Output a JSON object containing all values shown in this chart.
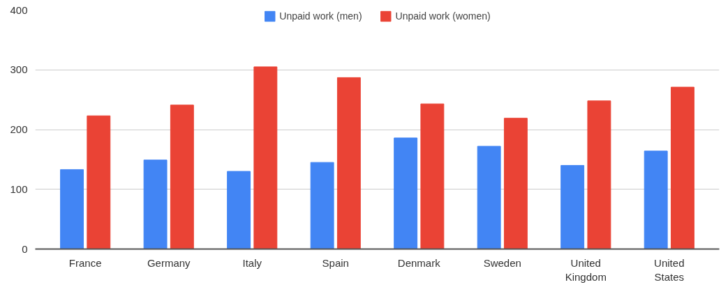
{
  "chart_data": {
    "type": "bar",
    "categories": [
      "France",
      "Germany",
      "Italy",
      "Spain",
      "Denmark",
      "Sweden",
      "United Kingdom",
      "United States"
    ],
    "series": [
      {
        "name": "Unpaid work (men)",
        "color": "#4285f4",
        "values": [
          133,
          149,
          130,
          145,
          186,
          172,
          140,
          164
        ]
      },
      {
        "name": "Unpaid work (women)",
        "color": "#ea4335",
        "values": [
          223,
          241,
          305,
          287,
          243,
          219,
          248,
          271
        ]
      }
    ],
    "ylim": [
      0,
      400
    ],
    "yticks": [
      0,
      100,
      200,
      300,
      400
    ],
    "grid": "y",
    "legend": "top"
  }
}
